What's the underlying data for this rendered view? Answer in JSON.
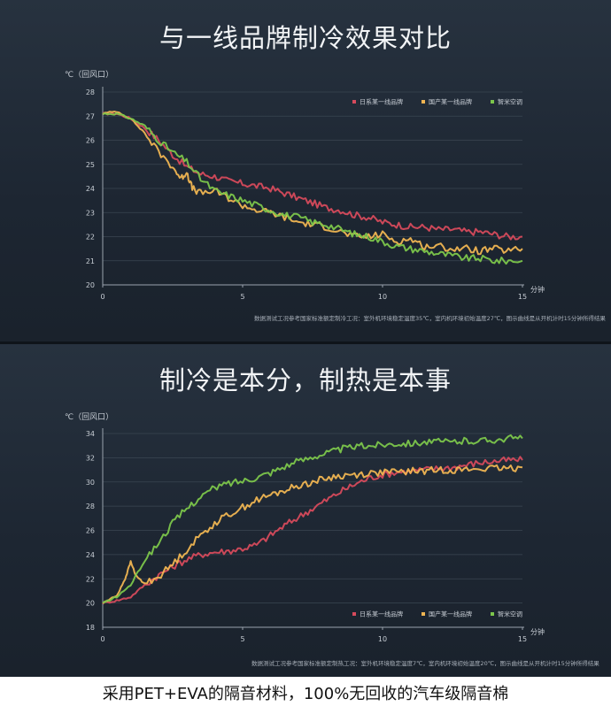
{
  "chart_data": [
    {
      "type": "line",
      "title": "与一线品牌制冷效果对比",
      "ylabel": "℃（回风口）",
      "xlabel": "分钟",
      "xlim": [
        0,
        15
      ],
      "ylim": [
        20,
        28
      ],
      "xticks": [
        "0",
        "5",
        "10",
        "15"
      ],
      "yticks": [
        "20",
        "21",
        "22",
        "23",
        "24",
        "25",
        "26",
        "27",
        "28"
      ],
      "legend_position": "top-right",
      "note": "数据测试工况参考国家标准额定制冷工况：室外机环境稳定温度35℃，室内机环境初始温度27℃，图示曲线是从开机计时15分钟所得结果",
      "grid": true,
      "series": [
        {
          "name": "日系某一线品牌",
          "color": "#d64a5c",
          "x": [
            0,
            0.5,
            1,
            1.5,
            2,
            2.5,
            3,
            3.5,
            4,
            4.5,
            5,
            5.5,
            6,
            6.5,
            7,
            7.5,
            8,
            8.5,
            9,
            9.5,
            10,
            10.5,
            11,
            11.5,
            12,
            12.5,
            13,
            13.5,
            14,
            14.5,
            15
          ],
          "values": [
            27.1,
            27.1,
            26.9,
            26.5,
            26.0,
            25.4,
            24.9,
            24.6,
            24.5,
            24.3,
            24.2,
            24.1,
            24.0,
            23.8,
            23.6,
            23.4,
            23.2,
            23.1,
            22.9,
            22.8,
            22.6,
            22.5,
            22.4,
            22.4,
            22.3,
            22.3,
            22.2,
            22.2,
            22.1,
            22.0,
            22.0
          ]
        },
        {
          "name": "国产某一线品牌",
          "color": "#f0b552",
          "x": [
            0,
            0.5,
            1,
            1.5,
            2,
            2.5,
            2.8,
            3.0,
            3.2,
            3.5,
            4,
            4.5,
            5,
            5.5,
            6,
            6.5,
            7,
            7.5,
            8,
            8.5,
            9,
            9.5,
            10,
            10.5,
            11,
            11.5,
            12,
            12.5,
            13,
            13.5,
            14,
            14.5,
            15
          ],
          "values": [
            27.1,
            27.2,
            26.9,
            26.3,
            25.5,
            24.9,
            24.4,
            24.7,
            24.0,
            23.8,
            23.9,
            23.6,
            23.3,
            23.1,
            23.0,
            22.8,
            22.6,
            22.5,
            22.4,
            22.2,
            22.0,
            22.0,
            22.1,
            21.8,
            21.9,
            21.6,
            21.6,
            21.5,
            21.5,
            21.4,
            21.5,
            21.4,
            21.5
          ]
        },
        {
          "name": "智米空调",
          "color": "#7cc64b",
          "x": [
            0,
            0.5,
            1,
            1.5,
            2,
            2.5,
            3,
            3.5,
            4,
            4.5,
            5,
            5.5,
            6,
            6.5,
            7,
            7.5,
            8,
            8.5,
            9,
            9.5,
            10,
            10.5,
            11,
            11.5,
            12,
            12.5,
            13,
            13.5,
            14,
            14.5,
            15
          ],
          "values": [
            27.1,
            27.1,
            26.9,
            26.6,
            26.0,
            25.5,
            25.1,
            24.4,
            23.9,
            23.7,
            23.5,
            23.3,
            23.1,
            22.9,
            22.8,
            22.6,
            22.5,
            22.3,
            22.1,
            22.0,
            21.8,
            21.6,
            21.5,
            21.4,
            21.3,
            21.2,
            21.1,
            21.1,
            21.0,
            21.0,
            21.0
          ]
        }
      ]
    },
    {
      "type": "line",
      "title": "制冷是本分，制热是本事",
      "ylabel": "℃（回风口）",
      "xlabel": "分钟",
      "xlim": [
        0,
        15
      ],
      "ylim": [
        18,
        34
      ],
      "xticks": [
        "0",
        "5",
        "10",
        "15"
      ],
      "yticks": [
        "18",
        "20",
        "22",
        "24",
        "26",
        "28",
        "30",
        "32",
        "34"
      ],
      "legend_position": "bottom-right",
      "note": "数据测试工况参考国家标准额定制热工况：室外机环境稳定温度7℃，室内机环境初始温度20℃，图示曲线是从开机计时15分钟所得结果",
      "grid": true,
      "series": [
        {
          "name": "日系某一线品牌",
          "color": "#d64a5c",
          "x": [
            0,
            0.5,
            1,
            1.5,
            2,
            2.5,
            3,
            3.5,
            4,
            4.5,
            5,
            5.5,
            6,
            6.5,
            7,
            7.5,
            8,
            8.5,
            9,
            9.5,
            10,
            10.5,
            11,
            11.5,
            12,
            12.5,
            13,
            13.5,
            14,
            14.5,
            15
          ],
          "values": [
            20.0,
            20.2,
            20.5,
            21.5,
            22.3,
            23.0,
            23.6,
            24.0,
            24.2,
            24.3,
            24.5,
            24.8,
            25.6,
            26.4,
            27.1,
            27.8,
            28.5,
            29.2,
            29.8,
            30.3,
            30.6,
            30.8,
            30.9,
            31.0,
            31.1,
            31.2,
            31.4,
            31.6,
            31.7,
            31.8,
            31.8
          ]
        },
        {
          "name": "国产某一线品牌",
          "color": "#f0b552",
          "x": [
            0,
            0.5,
            0.8,
            1.0,
            1.2,
            1.5,
            2,
            2.5,
            3,
            3.5,
            4,
            4.5,
            5,
            5.5,
            6,
            6.5,
            7,
            7.5,
            8,
            8.5,
            9,
            9.5,
            10,
            10.5,
            11,
            11.5,
            12,
            12.5,
            13,
            13.5,
            14,
            14.5,
            15
          ],
          "values": [
            20.0,
            20.6,
            22.0,
            23.4,
            22.2,
            21.6,
            22.2,
            23.2,
            24.4,
            25.6,
            26.6,
            27.3,
            27.9,
            28.5,
            28.9,
            29.3,
            29.7,
            30.0,
            30.3,
            30.5,
            30.6,
            30.7,
            30.8,
            30.8,
            30.9,
            30.9,
            31.0,
            31.0,
            31.0,
            31.1,
            31.1,
            31.1,
            31.2
          ]
        },
        {
          "name": "智米空调",
          "color": "#7cc64b",
          "x": [
            0,
            0.5,
            1,
            1.5,
            2,
            2.5,
            3,
            3.5,
            4,
            4.5,
            5,
            5.5,
            6,
            6.5,
            7,
            7.5,
            8,
            8.5,
            9,
            9.5,
            10,
            10.5,
            11,
            11.5,
            12,
            12.5,
            13,
            13.5,
            14,
            14.5,
            15
          ],
          "values": [
            20.0,
            20.5,
            21.5,
            23.5,
            25.0,
            26.6,
            27.8,
            28.8,
            29.5,
            29.9,
            30.1,
            30.4,
            30.8,
            31.3,
            31.7,
            32.1,
            32.4,
            32.7,
            32.9,
            33.0,
            33.1,
            33.2,
            33.2,
            33.3,
            33.3,
            33.3,
            33.4,
            33.4,
            33.5,
            33.6,
            33.6
          ]
        }
      ]
    }
  ],
  "caption": "采用PET+EVA的隔音材料，100%无回收的汽车级隔音棉"
}
